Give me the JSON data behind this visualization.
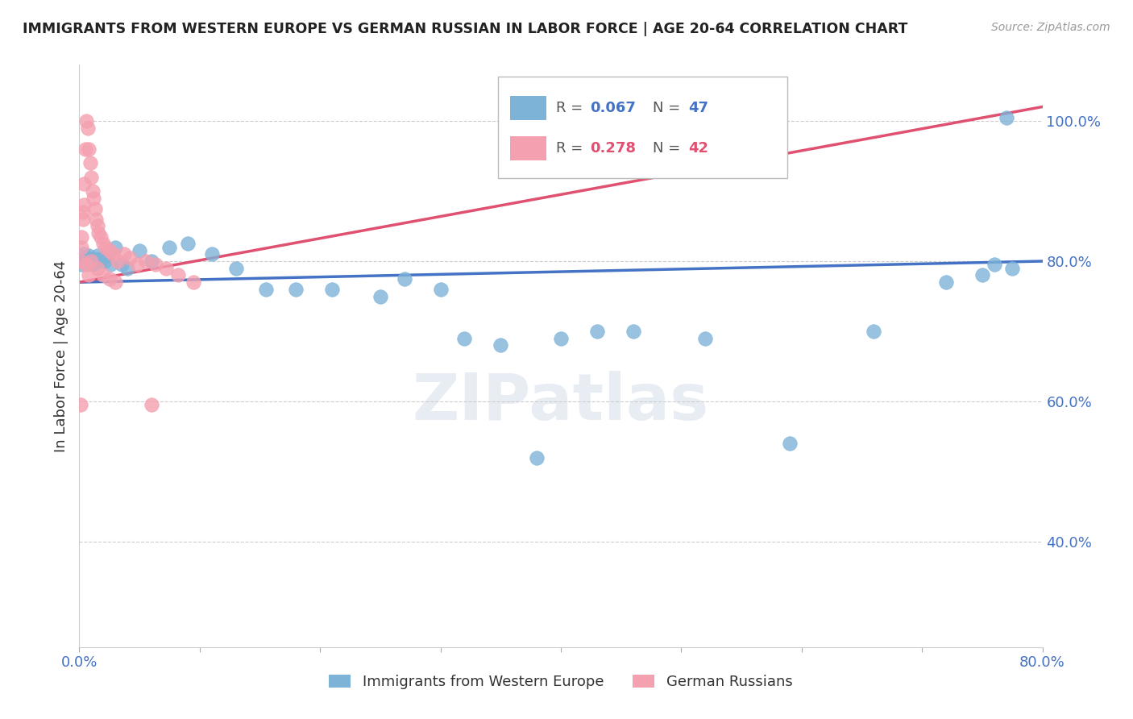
{
  "title": "IMMIGRANTS FROM WESTERN EUROPE VS GERMAN RUSSIAN IN LABOR FORCE | AGE 20-64 CORRELATION CHART",
  "source": "Source: ZipAtlas.com",
  "ylabel_text": "In Labor Force | Age 20-64",
  "xlim": [
    0.0,
    0.8
  ],
  "ylim": [
    0.25,
    1.08
  ],
  "xticks": [
    0.0,
    0.1,
    0.2,
    0.3,
    0.4,
    0.5,
    0.6,
    0.7,
    0.8
  ],
  "xticklabels": [
    "0.0%",
    "",
    "",
    "",
    "",
    "",
    "",
    "",
    "80.0%"
  ],
  "ytick_positions": [
    0.4,
    0.6,
    0.8,
    1.0
  ],
  "ytick_labels": [
    "40.0%",
    "60.0%",
    "80.0%",
    "100.0%"
  ],
  "blue_R": 0.067,
  "blue_N": 47,
  "pink_R": 0.278,
  "pink_N": 42,
  "blue_color": "#7EB3D8",
  "pink_color": "#F4A0B0",
  "blue_line_color": "#4472C4",
  "pink_line_color": "#E05070",
  "legend_label_blue": "Immigrants from Western Europe",
  "legend_label_pink": "German Russians",
  "blue_x": [
    0.002,
    0.003,
    0.004,
    0.005,
    0.006,
    0.007,
    0.008,
    0.009,
    0.01,
    0.011,
    0.012,
    0.013,
    0.015,
    0.017,
    0.019,
    0.021,
    0.023,
    0.026,
    0.03,
    0.035,
    0.04,
    0.05,
    0.06,
    0.075,
    0.09,
    0.11,
    0.13,
    0.155,
    0.18,
    0.21,
    0.25,
    0.3,
    0.35,
    0.4,
    0.46,
    0.52,
    0.59,
    0.66,
    0.72,
    0.75,
    0.76,
    0.77,
    0.775,
    0.32,
    0.38,
    0.43,
    0.27
  ],
  "blue_y": [
    0.795,
    0.8,
    0.81,
    0.805,
    0.798,
    0.802,
    0.808,
    0.803,
    0.797,
    0.8,
    0.795,
    0.803,
    0.808,
    0.8,
    0.805,
    0.8,
    0.81,
    0.795,
    0.82,
    0.795,
    0.79,
    0.815,
    0.8,
    0.82,
    0.825,
    0.81,
    0.79,
    0.76,
    0.76,
    0.76,
    0.75,
    0.76,
    0.68,
    0.69,
    0.7,
    0.69,
    0.54,
    0.7,
    0.77,
    0.78,
    0.795,
    1.005,
    0.79,
    0.69,
    0.52,
    0.7,
    0.775
  ],
  "pink_x": [
    0.001,
    0.002,
    0.003,
    0.004,
    0.005,
    0.006,
    0.007,
    0.008,
    0.009,
    0.01,
    0.011,
    0.012,
    0.013,
    0.014,
    0.015,
    0.016,
    0.018,
    0.02,
    0.022,
    0.025,
    0.028,
    0.032,
    0.037,
    0.042,
    0.048,
    0.055,
    0.063,
    0.072,
    0.082,
    0.095,
    0.02,
    0.025,
    0.03,
    0.015,
    0.01,
    0.008,
    0.006,
    0.004,
    0.003,
    0.002,
    0.001,
    0.06
  ],
  "pink_y": [
    0.8,
    0.835,
    0.87,
    0.91,
    0.96,
    1.0,
    0.99,
    0.96,
    0.94,
    0.92,
    0.9,
    0.89,
    0.875,
    0.86,
    0.85,
    0.84,
    0.835,
    0.825,
    0.82,
    0.815,
    0.81,
    0.8,
    0.81,
    0.805,
    0.795,
    0.8,
    0.795,
    0.79,
    0.78,
    0.77,
    0.78,
    0.775,
    0.77,
    0.79,
    0.8,
    0.78,
    0.795,
    0.88,
    0.86,
    0.82,
    0.595,
    0.595
  ]
}
